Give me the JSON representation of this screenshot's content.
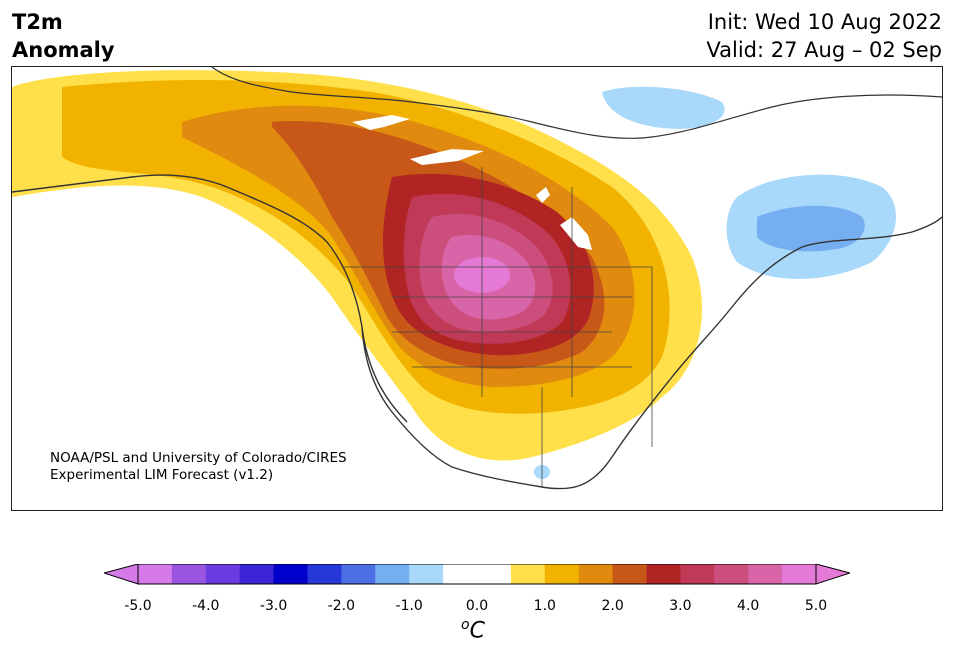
{
  "title": {
    "line1": "T2m",
    "line2": "Anomaly"
  },
  "header": {
    "init": "Init: Wed 10 Aug 2022",
    "valid": "Valid: 27 Aug – 02 Sep"
  },
  "credit": {
    "line1": "NOAA/PSL and University of Colorado/CIRES",
    "line2": "Experimental LIM Forecast (v1.2)"
  },
  "colorbar": {
    "ticks": [
      "-5.0",
      "-4.0",
      "-3.0",
      "-2.0",
      "-1.0",
      "0.0",
      "1.0",
      "2.0",
      "3.0",
      "4.0",
      "5.0"
    ],
    "unit_base": "C",
    "unit_sup": "o",
    "colors": [
      "#d57ae6",
      "#9a55e0",
      "#6b3ae0",
      "#3a24d6",
      "#0000cc",
      "#2638d8",
      "#4d6fe6",
      "#76aef2",
      "#a8d8fa",
      "#ffffff",
      "#ffffff",
      "#ffe04a",
      "#f2b300",
      "#e08a10",
      "#c85818",
      "#b02424",
      "#c03a58",
      "#cc4e7c",
      "#d865a8",
      "#e57ad6"
    ]
  },
  "map": {
    "legend_colors": {
      "yellow": "#ffe04a",
      "orange1": "#f2b300",
      "orange2": "#e08a10",
      "orange3": "#c85818",
      "red": "#b02424",
      "crimson": "#c03a58",
      "rose": "#cc4e7c",
      "pink": "#d865a8",
      "magenta": "#e57ad6",
      "lightblue": "#a8d8fa",
      "blue": "#76aef2"
    }
  }
}
